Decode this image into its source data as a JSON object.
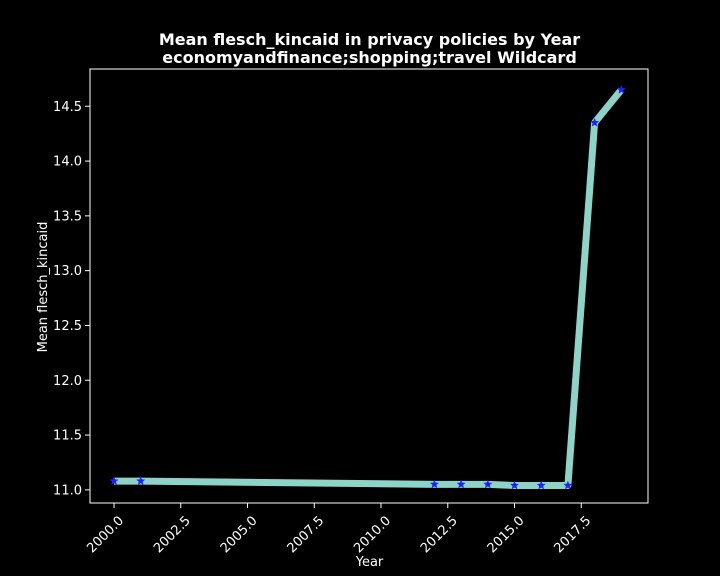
{
  "chart_data": {
    "type": "line",
    "title": "Mean flesch_kincaid in privacy policies by Year",
    "subtitle": "economyandfinance;shopping;travel Wildcard",
    "xlabel": "Year",
    "ylabel": "Mean flesch_kincaid",
    "xlim": [
      1999.1,
      2020.0
    ],
    "ylim": [
      10.88,
      14.84
    ],
    "xticks": [
      "2000.0",
      "2002.5",
      "2005.0",
      "2007.5",
      "2010.0",
      "2012.5",
      "2015.0",
      "2017.5"
    ],
    "xtick_values": [
      2000.0,
      2002.5,
      2005.0,
      2007.5,
      2010.0,
      2012.5,
      2015.0,
      2017.5
    ],
    "yticks": [
      "11.0",
      "11.5",
      "12.0",
      "12.5",
      "13.0",
      "13.5",
      "14.0",
      "14.5"
    ],
    "ytick_values": [
      11.0,
      11.5,
      12.0,
      12.5,
      13.0,
      13.5,
      14.0,
      14.5
    ],
    "grid": false,
    "series": [
      {
        "x": [
          2000,
          2001,
          2012,
          2013,
          2014,
          2015,
          2016,
          2017,
          2018,
          2019
        ],
        "values": [
          11.08,
          11.08,
          11.05,
          11.05,
          11.05,
          11.04,
          11.04,
          11.04,
          14.35,
          14.65
        ],
        "line_color": "#8dd3c7",
        "marker_color": "#1f1fff",
        "marker": "star"
      }
    ]
  }
}
